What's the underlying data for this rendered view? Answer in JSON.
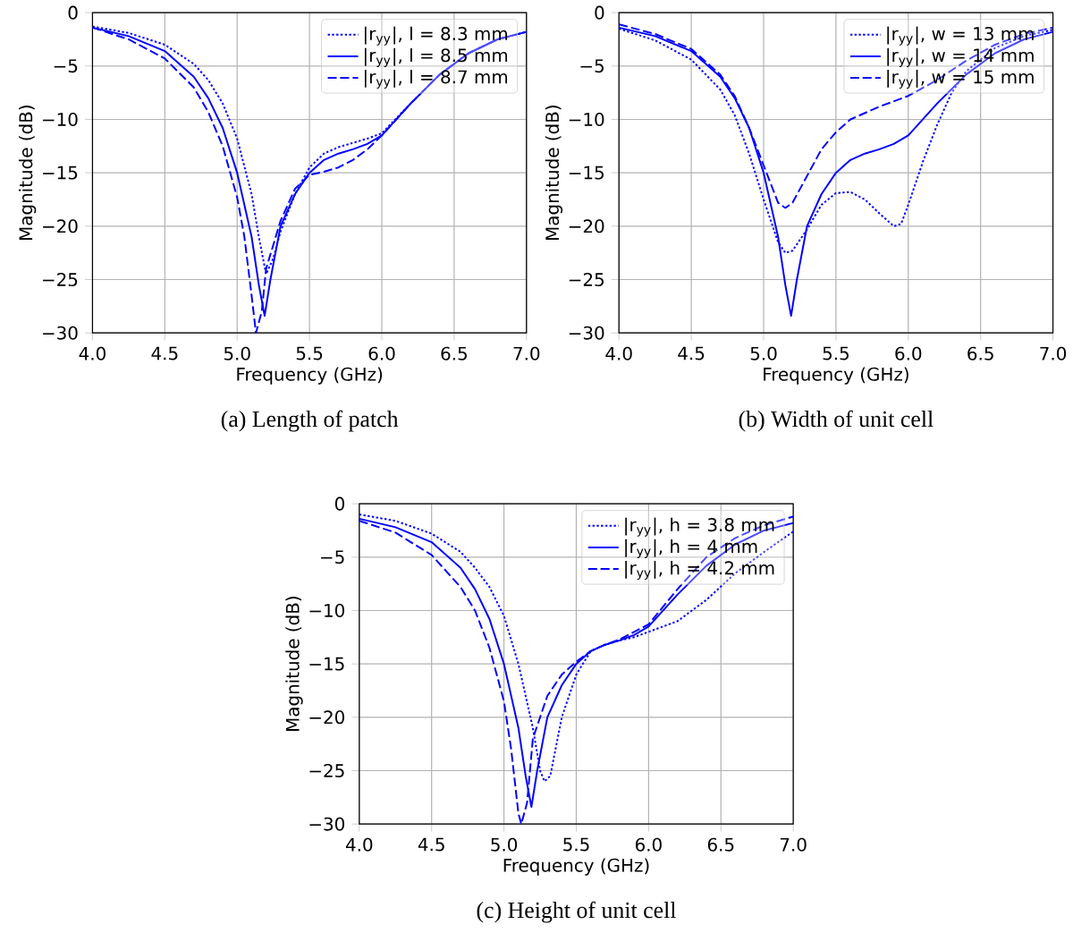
{
  "chart_data": [
    {
      "type": "line",
      "annotations": [
        "(a) Length of patch"
      ],
      "xlabel": "Frequency (GHz)",
      "ylabel": "Magnitude (dB)",
      "xlim": [
        4,
        7
      ],
      "ylim": [
        -30,
        0
      ],
      "xticks": [
        {
          "value": 4,
          "label": "4.0"
        },
        {
          "value": 4.5,
          "label": "4.5"
        },
        {
          "value": 5,
          "label": "5.0"
        },
        {
          "value": 5.5,
          "label": "5.5"
        },
        {
          "value": 6,
          "label": "6.0"
        },
        {
          "value": 6.5,
          "label": "6.5"
        },
        {
          "value": 7,
          "label": "7.0"
        }
      ],
      "yticks": [
        {
          "value": -30,
          "label": "−30"
        },
        {
          "value": -25,
          "label": "−25"
        },
        {
          "value": -20,
          "label": "−20"
        },
        {
          "value": -15,
          "label": "−15"
        },
        {
          "value": -10,
          "label": "−10"
        },
        {
          "value": -5,
          "label": "−5"
        },
        {
          "value": 0,
          "label": "0"
        }
      ],
      "grid": true,
      "legend": "top right",
      "series": [
        {
          "name": "|r$_{yy}$|, l = 8.3 mm",
          "color": "#0000ff",
          "line_style": "dotted",
          "x": [
            4.0,
            4.25,
            4.5,
            4.7,
            4.8,
            4.9,
            5.0,
            5.1,
            5.15,
            5.2,
            5.25,
            5.3,
            5.4,
            5.5,
            5.6,
            5.7,
            5.8,
            5.9,
            6.0,
            6.2,
            6.4,
            6.6,
            6.8,
            7.0
          ],
          "values": [
            -1.3,
            -1.9,
            -3.0,
            -4.8,
            -6.3,
            -8.5,
            -11.8,
            -17,
            -21,
            -24.5,
            -23,
            -20.5,
            -17,
            -14.5,
            -13.2,
            -12.6,
            -12.2,
            -11.8,
            -11.3,
            -8.5,
            -5.8,
            -3.8,
            -2.5,
            -1.8
          ]
        },
        {
          "name": "|r$_{yy}$|, l = 8.5 mm",
          "color": "#0000ff",
          "line_style": "solid",
          "x": [
            4.0,
            4.25,
            4.5,
            4.7,
            4.8,
            4.9,
            5.0,
            5.1,
            5.15,
            5.19,
            5.23,
            5.3,
            5.4,
            5.5,
            5.6,
            5.7,
            5.8,
            5.9,
            6.0,
            6.2,
            6.4,
            6.6,
            6.8,
            7.0
          ],
          "values": [
            -1.4,
            -2.2,
            -3.6,
            -6.0,
            -8.0,
            -10.8,
            -15.0,
            -21.0,
            -25.5,
            -28.4,
            -25,
            -20,
            -17,
            -15.0,
            -13.8,
            -13.2,
            -12.8,
            -12.3,
            -11.5,
            -8.5,
            -5.8,
            -3.8,
            -2.5,
            -1.8
          ]
        },
        {
          "name": "|r$_{yy}$|, l = 8.7 mm",
          "color": "#0000ff",
          "line_style": "dashed",
          "x": [
            4.0,
            4.25,
            4.5,
            4.7,
            4.8,
            4.9,
            5.0,
            5.05,
            5.1,
            5.13,
            5.17,
            5.2,
            5.3,
            5.4,
            5.5,
            5.6,
            5.7,
            5.8,
            5.9,
            6.0,
            6.2,
            6.4,
            6.6,
            6.8,
            7.0
          ],
          "values": [
            -1.4,
            -2.5,
            -4.3,
            -7.0,
            -9.3,
            -12.5,
            -17.3,
            -21,
            -26.5,
            -30,
            -28,
            -24,
            -19.5,
            -16.5,
            -15.2,
            -14.9,
            -14.5,
            -13.8,
            -12.8,
            -11.5,
            -8.5,
            -5.8,
            -3.8,
            -2.5,
            -1.8
          ]
        }
      ]
    },
    {
      "type": "line",
      "annotations": [
        "(b) Width of unit cell"
      ],
      "xlabel": "Frequency (GHz)",
      "ylabel": "Magnitude (dB)",
      "xlim": [
        4,
        7
      ],
      "ylim": [
        -30,
        0
      ],
      "xticks": [
        {
          "value": 4,
          "label": "4.0"
        },
        {
          "value": 4.5,
          "label": "4.5"
        },
        {
          "value": 5,
          "label": "5.0"
        },
        {
          "value": 5.5,
          "label": "5.5"
        },
        {
          "value": 6,
          "label": "6.0"
        },
        {
          "value": 6.5,
          "label": "6.5"
        },
        {
          "value": 7,
          "label": "7.0"
        }
      ],
      "yticks": [
        {
          "value": -30,
          "label": "−30"
        },
        {
          "value": -25,
          "label": "−25"
        },
        {
          "value": -20,
          "label": "−20"
        },
        {
          "value": -15,
          "label": "−15"
        },
        {
          "value": -10,
          "label": "−10"
        },
        {
          "value": -5,
          "label": "−5"
        },
        {
          "value": 0,
          "label": "0"
        }
      ],
      "grid": true,
      "legend": "top right",
      "series": [
        {
          "name": "|r$_{yy}$|, w = 13 mm",
          "color": "#0000ff",
          "line_style": "dotted",
          "x": [
            4.0,
            4.25,
            4.5,
            4.7,
            4.8,
            4.9,
            5.0,
            5.1,
            5.15,
            5.2,
            5.3,
            5.4,
            5.5,
            5.6,
            5.7,
            5.8,
            5.9,
            5.95,
            6.0,
            6.1,
            6.2,
            6.3,
            6.4,
            6.6,
            6.8,
            7.0
          ],
          "values": [
            -1.5,
            -2.6,
            -4.4,
            -7.2,
            -9.6,
            -13.2,
            -17.5,
            -21.5,
            -22.5,
            -22.3,
            -20.3,
            -18.0,
            -16.9,
            -16.8,
            -17.5,
            -18.8,
            -20.0,
            -19.8,
            -18.0,
            -14.0,
            -10.5,
            -7.5,
            -5.5,
            -3.3,
            -2.2,
            -1.6
          ]
        },
        {
          "name": "|r$_{yy}$|, w = 14 mm",
          "color": "#0000ff",
          "line_style": "solid",
          "x": [
            4.0,
            4.25,
            4.5,
            4.7,
            4.8,
            4.9,
            5.0,
            5.1,
            5.15,
            5.19,
            5.23,
            5.3,
            5.4,
            5.5,
            5.6,
            5.7,
            5.8,
            5.9,
            6.0,
            6.2,
            6.4,
            6.6,
            6.8,
            7.0
          ],
          "values": [
            -1.4,
            -2.2,
            -3.6,
            -6.0,
            -8.0,
            -10.8,
            -15.0,
            -21.0,
            -25.5,
            -28.4,
            -25,
            -20,
            -17,
            -15.0,
            -13.8,
            -13.2,
            -12.8,
            -12.3,
            -11.5,
            -8.5,
            -5.8,
            -3.8,
            -2.5,
            -1.8
          ]
        },
        {
          "name": "|r$_{yy}$|, w = 15 mm",
          "color": "#0000ff",
          "line_style": "dashed",
          "x": [
            4.0,
            4.25,
            4.5,
            4.7,
            4.8,
            4.9,
            5.0,
            5.1,
            5.15,
            5.2,
            5.3,
            5.4,
            5.5,
            5.6,
            5.8,
            6.0,
            6.2,
            6.4,
            6.6,
            6.8,
            7.0
          ],
          "values": [
            -1.1,
            -2.0,
            -3.4,
            -5.8,
            -7.8,
            -10.8,
            -14.3,
            -17.8,
            -18.3,
            -17.8,
            -15.3,
            -12.8,
            -11.2,
            -10.0,
            -8.8,
            -7.8,
            -6.3,
            -4.5,
            -3.0,
            -2.0,
            -1.4
          ]
        }
      ]
    },
    {
      "type": "line",
      "annotations": [
        "(c) Height of unit cell"
      ],
      "xlabel": "Frequency (GHz)",
      "ylabel": "Magnitude (dB)",
      "xlim": [
        4,
        7
      ],
      "ylim": [
        -30,
        0
      ],
      "xticks": [
        {
          "value": 4,
          "label": "4.0"
        },
        {
          "value": 4.5,
          "label": "4.5"
        },
        {
          "value": 5,
          "label": "5.0"
        },
        {
          "value": 5.5,
          "label": "5.5"
        },
        {
          "value": 6,
          "label": "6.0"
        },
        {
          "value": 6.5,
          "label": "6.5"
        },
        {
          "value": 7,
          "label": "7.0"
        }
      ],
      "yticks": [
        {
          "value": -30,
          "label": "−30"
        },
        {
          "value": -25,
          "label": "−25"
        },
        {
          "value": -20,
          "label": "−20"
        },
        {
          "value": -15,
          "label": "−15"
        },
        {
          "value": -10,
          "label": "−10"
        },
        {
          "value": -5,
          "label": "−5"
        },
        {
          "value": 0,
          "label": "0"
        }
      ],
      "grid": true,
      "legend": "top right",
      "series": [
        {
          "name": "|r$_{yy}$|, h = 3.8 mm",
          "color": "#0000ff",
          "line_style": "dotted",
          "x": [
            4.0,
            4.25,
            4.5,
            4.7,
            4.8,
            4.9,
            5.0,
            5.1,
            5.2,
            5.25,
            5.28,
            5.32,
            5.4,
            5.5,
            5.6,
            5.7,
            5.8,
            5.9,
            6.0,
            6.2,
            6.4,
            6.6,
            6.8,
            7.0
          ],
          "values": [
            -1.0,
            -1.6,
            -2.8,
            -4.5,
            -6.0,
            -7.8,
            -10.5,
            -15,
            -21,
            -25,
            -26,
            -25.5,
            -20,
            -16,
            -13.8,
            -13.2,
            -12.8,
            -12.5,
            -12.0,
            -11.0,
            -9.0,
            -6.5,
            -4.5,
            -2.6
          ]
        },
        {
          "name": "|r$_{yy}$|, h = 4 mm",
          "color": "#0000ff",
          "line_style": "solid",
          "x": [
            4.0,
            4.25,
            4.5,
            4.7,
            4.8,
            4.9,
            5.0,
            5.1,
            5.15,
            5.19,
            5.23,
            5.3,
            5.4,
            5.5,
            5.6,
            5.7,
            5.8,
            5.9,
            6.0,
            6.2,
            6.4,
            6.6,
            6.8,
            7.0
          ],
          "values": [
            -1.4,
            -2.2,
            -3.6,
            -6.0,
            -8.0,
            -10.8,
            -15.0,
            -21.0,
            -25.5,
            -28.4,
            -25,
            -20,
            -17,
            -15.0,
            -13.8,
            -13.2,
            -12.8,
            -12.3,
            -11.5,
            -8.5,
            -5.8,
            -3.8,
            -2.5,
            -1.8
          ]
        },
        {
          "name": "|r$_{yy}$|, h = 4.2 mm",
          "color": "#0000ff",
          "line_style": "dashed",
          "x": [
            4.0,
            4.25,
            4.5,
            4.7,
            4.8,
            4.9,
            5.0,
            5.05,
            5.1,
            5.12,
            5.16,
            5.2,
            5.3,
            5.4,
            5.5,
            5.6,
            5.7,
            5.8,
            5.9,
            6.0,
            6.2,
            6.4,
            6.6,
            6.8,
            7.0
          ],
          "values": [
            -1.6,
            -2.7,
            -4.8,
            -7.8,
            -10,
            -13.5,
            -18.5,
            -23,
            -29,
            -30,
            -28,
            -22,
            -18,
            -16,
            -14.8,
            -13.8,
            -13.2,
            -12.7,
            -12.0,
            -11.3,
            -8,
            -5,
            -3.2,
            -2.0,
            -1.2
          ]
        }
      ]
    }
  ]
}
